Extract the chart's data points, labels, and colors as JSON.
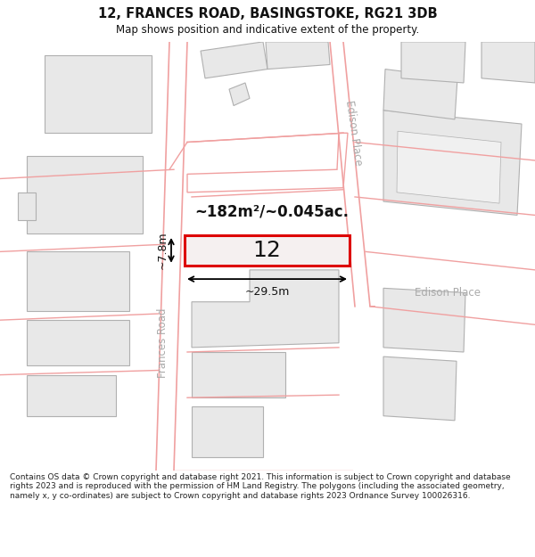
{
  "title_line1": "12, FRANCES ROAD, BASINGSTOKE, RG21 3DB",
  "title_line2": "Map shows position and indicative extent of the property.",
  "footer_text": "Contains OS data © Crown copyright and database right 2021. This information is subject to Crown copyright and database rights 2023 and is reproduced with the permission of HM Land Registry. The polygons (including the associated geometry, namely x, y co-ordinates) are subject to Crown copyright and database rights 2023 Ordnance Survey 100026316.",
  "bg_color": "#ffffff",
  "map_bg": "#ffffff",
  "road_line_color": "#f0a0a0",
  "building_fill": "#e8e8e8",
  "building_edge": "#b0b0b0",
  "highlight_color": "#dd0000",
  "highlight_fill": "#ede8e8",
  "text_color": "#111111",
  "road_label_color": "#aaaaaa",
  "property_number": "12",
  "area_label": "~182m²/~0.045ac.",
  "width_label": "~29.5m",
  "height_label": "~7.8m",
  "road_label1": "Frances Road",
  "road_label2": "Edison Place",
  "road_label3": "Edison Place"
}
